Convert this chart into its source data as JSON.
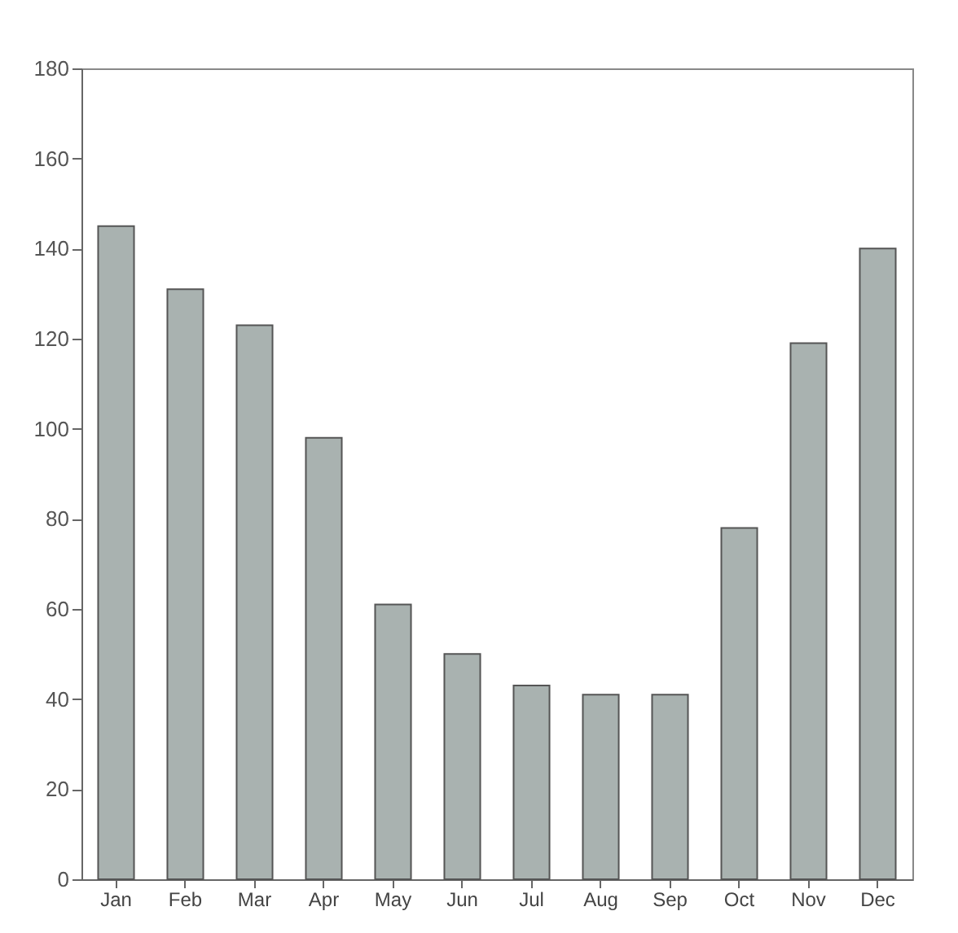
{
  "chart_data": {
    "type": "bar",
    "categories": [
      "Jan",
      "Feb",
      "Mar",
      "Apr",
      "May",
      "Jun",
      "Jul",
      "Aug",
      "Sep",
      "Oct",
      "Nov",
      "Dec"
    ],
    "values": [
      145,
      131,
      123,
      98,
      61,
      50,
      43,
      41,
      41,
      78,
      119,
      140
    ],
    "color": "#a9b2b0",
    "ylim": [
      0,
      180
    ],
    "yticks": [
      0,
      20,
      40,
      60,
      80,
      100,
      120,
      140,
      160,
      180
    ],
    "grid": false
  }
}
